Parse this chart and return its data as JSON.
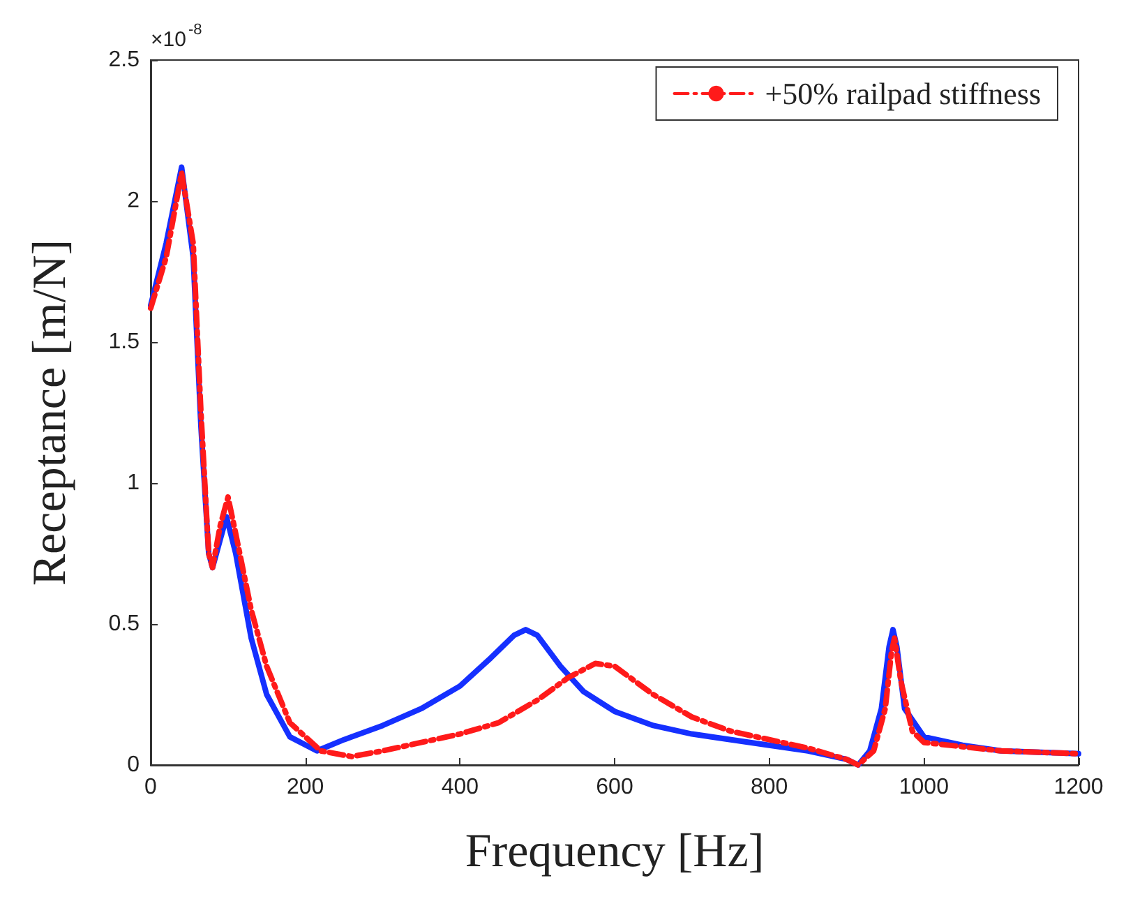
{
  "chart_data": {
    "type": "line",
    "xlabel": "Frequency [Hz]",
    "ylabel": "Receptance [m/N]",
    "annotations": [
      "×10$^{-8}$"
    ],
    "xlim": [
      0,
      1200
    ],
    "xticks": [
      0,
      200,
      400,
      600,
      800,
      1000,
      1200
    ],
    "ylim": [
      0,
      2.5
    ],
    "yticks": [
      0,
      0.5,
      1,
      1.5,
      2,
      2.5
    ],
    "grid": false,
    "legend": "top right",
    "marker": "none",
    "series": [
      {
        "color": "#1530ff",
        "line_style": "solid",
        "x": [
          0,
          20,
          40,
          55,
          65,
          75,
          80,
          90,
          98,
          110,
          130,
          150,
          180,
          215,
          250,
          300,
          350,
          400,
          440,
          470,
          485,
          500,
          530,
          560,
          600,
          650,
          700,
          800,
          850,
          900,
          915,
          930,
          945,
          955,
          960,
          965,
          975,
          1000,
          1050,
          1100,
          1200
        ],
        "values": [
          1.63,
          1.85,
          2.12,
          1.8,
          1.2,
          0.75,
          0.7,
          0.8,
          0.88,
          0.75,
          0.45,
          0.25,
          0.1,
          0.05,
          0.09,
          0.14,
          0.2,
          0.28,
          0.38,
          0.46,
          0.48,
          0.46,
          0.35,
          0.26,
          0.19,
          0.14,
          0.11,
          0.07,
          0.05,
          0.02,
          0,
          0.05,
          0.2,
          0.42,
          0.48,
          0.42,
          0.2,
          0.1,
          0.07,
          0.05,
          0.04
        ]
      },
      {
        "name": "+50% railpad stiffness",
        "color": "#ff1a1a",
        "line_style": "dashed",
        "x": [
          0,
          20,
          40,
          55,
          65,
          75,
          80,
          90,
          100,
          110,
          130,
          150,
          180,
          220,
          260,
          300,
          350,
          400,
          450,
          500,
          540,
          575,
          600,
          650,
          700,
          750,
          800,
          850,
          900,
          915,
          935,
          950,
          958,
          962,
          970,
          985,
          1000,
          1100,
          1200
        ],
        "values": [
          1.62,
          1.8,
          2.1,
          1.85,
          1.25,
          0.75,
          0.7,
          0.85,
          0.95,
          0.82,
          0.55,
          0.35,
          0.15,
          0.05,
          0.03,
          0.05,
          0.08,
          0.11,
          0.15,
          0.23,
          0.31,
          0.36,
          0.35,
          0.25,
          0.17,
          0.12,
          0.09,
          0.06,
          0.02,
          0,
          0.05,
          0.2,
          0.4,
          0.45,
          0.3,
          0.12,
          0.08,
          0.05,
          0.04
        ]
      }
    ]
  }
}
